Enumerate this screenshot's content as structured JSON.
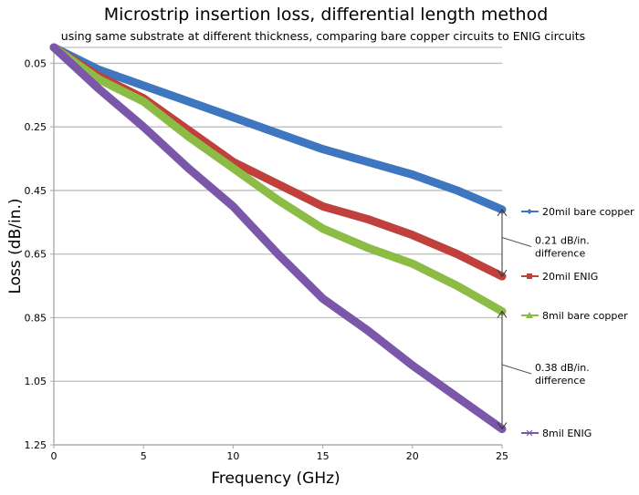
{
  "chart_data": {
    "type": "line",
    "title": "Microstrip insertion loss, differential length method",
    "subtitle": "using same substrate at different thickness, comparing bare copper circuits to ENIG circuits",
    "xlabel": "Frequency (GHz)",
    "ylabel": "Loss (dB/in.)",
    "xlim": [
      0,
      25
    ],
    "ylim": [
      0.0,
      1.25
    ],
    "y_inverted": true,
    "grid": true,
    "x_ticks": [
      "0",
      "5",
      "10",
      "15",
      "20",
      "25"
    ],
    "x_tick_values": [
      0,
      5,
      10,
      15,
      20,
      25
    ],
    "y_ticks": [
      "0.05",
      "0.25",
      "0.45",
      "0.65",
      "0.85",
      "1.05",
      "1.25"
    ],
    "y_tick_values": [
      0.05,
      0.25,
      0.45,
      0.65,
      0.85,
      1.05,
      1.25
    ],
    "legend_placement": "right",
    "x": [
      0,
      2.5,
      5,
      7.5,
      10,
      12.5,
      15,
      17.5,
      20,
      22.5,
      25
    ],
    "series": [
      {
        "name": "20mil bare copper",
        "color": "#3f76c0",
        "marker": "diamond",
        "values": [
          0.0,
          0.07,
          0.12,
          0.17,
          0.22,
          0.27,
          0.32,
          0.36,
          0.4,
          0.45,
          0.51
        ]
      },
      {
        "name": "20mil ENIG",
        "color": "#c0403c",
        "marker": "square",
        "values": [
          0.0,
          0.09,
          0.16,
          0.26,
          0.36,
          0.43,
          0.5,
          0.54,
          0.59,
          0.65,
          0.72
        ]
      },
      {
        "name": "8mil bare copper",
        "color": "#8cbc45",
        "marker": "triangle",
        "values": [
          0.0,
          0.1,
          0.17,
          0.28,
          0.38,
          0.48,
          0.57,
          0.63,
          0.68,
          0.75,
          0.83
        ]
      },
      {
        "name": "8mil ENIG",
        "color": "#7a57a8",
        "marker": "x",
        "values": [
          0.0,
          0.13,
          0.25,
          0.38,
          0.5,
          0.65,
          0.79,
          0.89,
          1.0,
          1.1,
          1.2
        ]
      }
    ],
    "annotations": [
      {
        "line1": "0.21 dB/in.",
        "line2": "difference",
        "from_series": "20mil bare copper",
        "to_series": "20mil ENIG",
        "at_x": 25
      },
      {
        "line1": "0.38 dB/in.",
        "line2": "difference",
        "from_series": "8mil bare copper",
        "to_series": "8mil ENIG",
        "at_x": 25
      }
    ]
  }
}
